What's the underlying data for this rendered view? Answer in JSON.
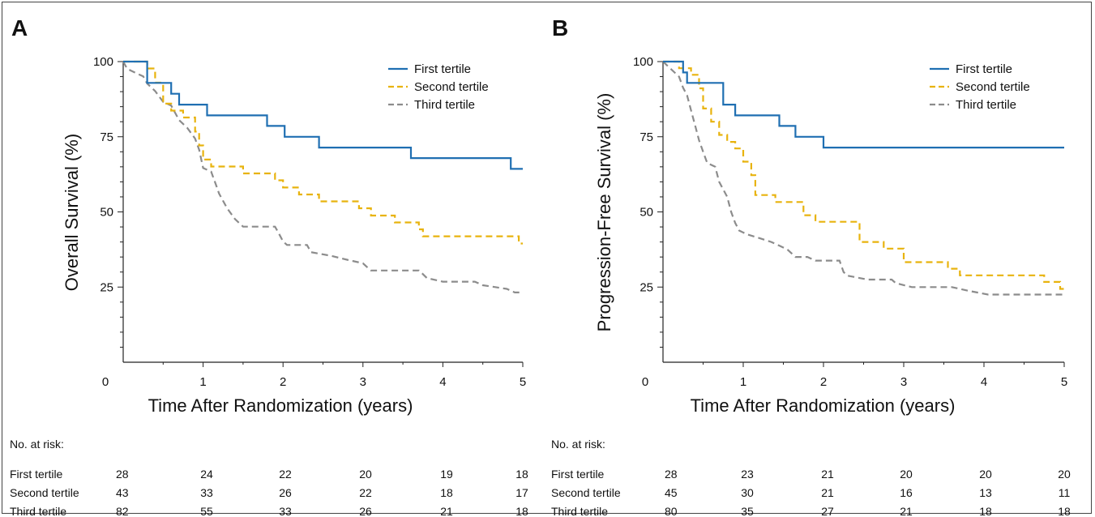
{
  "chart_data": [
    {
      "panel": "A",
      "type": "line",
      "step": true,
      "xlabel": "Time After Randomization (years)",
      "ylabel": "Overall Survival (%)",
      "xlim": [
        0,
        5
      ],
      "ylim": [
        0,
        100
      ],
      "xticks": [
        "0",
        "1",
        "2",
        "3",
        "4",
        "5"
      ],
      "yticks": [
        "25",
        "50",
        "75",
        "100"
      ],
      "legend_position": "top-right",
      "series": [
        {
          "name": "First tertile",
          "color": "#1f6fb2",
          "dash": "solid",
          "points": [
            [
              0,
              100
            ],
            [
              0.3,
              100
            ],
            [
              0.3,
              92.9
            ],
            [
              0.6,
              92.9
            ],
            [
              0.6,
              89.3
            ],
            [
              0.7,
              89.3
            ],
            [
              0.7,
              85.7
            ],
            [
              1.05,
              85.7
            ],
            [
              1.05,
              82.1
            ],
            [
              1.8,
              82.1
            ],
            [
              1.8,
              78.6
            ],
            [
              2.02,
              78.6
            ],
            [
              2.02,
              75
            ],
            [
              2.45,
              75
            ],
            [
              2.45,
              71.4
            ],
            [
              3.6,
              71.4
            ],
            [
              3.6,
              67.9
            ],
            [
              4.85,
              67.9
            ],
            [
              4.85,
              64.3
            ],
            [
              5,
              64.3
            ]
          ]
        },
        {
          "name": "Second tertile",
          "color": "#e8b30e",
          "dash": "dash",
          "points": [
            [
              0,
              100
            ],
            [
              0.3,
              100
            ],
            [
              0.3,
              97.7
            ],
            [
              0.4,
              97.7
            ],
            [
              0.4,
              93
            ],
            [
              0.5,
              93
            ],
            [
              0.5,
              86
            ],
            [
              0.6,
              86
            ],
            [
              0.6,
              83.7
            ],
            [
              0.75,
              83.7
            ],
            [
              0.75,
              81.4
            ],
            [
              0.9,
              81.4
            ],
            [
              0.9,
              76.7
            ],
            [
              0.95,
              76.7
            ],
            [
              0.95,
              72.1
            ],
            [
              1.0,
              72.1
            ],
            [
              1.0,
              67.4
            ],
            [
              1.1,
              67.4
            ],
            [
              1.1,
              65.1
            ],
            [
              1.5,
              65.1
            ],
            [
              1.5,
              62.8
            ],
            [
              1.9,
              62.8
            ],
            [
              1.9,
              60.5
            ],
            [
              2.0,
              60.5
            ],
            [
              2.0,
              58.1
            ],
            [
              2.2,
              58.1
            ],
            [
              2.2,
              55.8
            ],
            [
              2.45,
              55.8
            ],
            [
              2.45,
              53.5
            ],
            [
              2.95,
              53.5
            ],
            [
              2.95,
              51.2
            ],
            [
              3.1,
              51.2
            ],
            [
              3.1,
              48.8
            ],
            [
              3.4,
              48.8
            ],
            [
              3.4,
              46.5
            ],
            [
              3.7,
              46.5
            ],
            [
              3.7,
              44.2
            ],
            [
              3.75,
              44.2
            ],
            [
              3.75,
              41.9
            ],
            [
              4.95,
              41.9
            ],
            [
              4.95,
              39.5
            ],
            [
              5,
              39.5
            ]
          ]
        },
        {
          "name": "Third tertile",
          "color": "#8c8c8c",
          "dash": "dash",
          "points": [
            [
              0,
              100
            ],
            [
              0.05,
              97.6
            ],
            [
              0.15,
              96.3
            ],
            [
              0.25,
              95.1
            ],
            [
              0.3,
              92.7
            ],
            [
              0.4,
              90.2
            ],
            [
              0.5,
              86.6
            ],
            [
              0.6,
              85.4
            ],
            [
              0.7,
              80.5
            ],
            [
              0.8,
              78
            ],
            [
              0.9,
              74.4
            ],
            [
              0.95,
              70.7
            ],
            [
              1.0,
              64.6
            ],
            [
              1.1,
              63.4
            ],
            [
              1.15,
              59.8
            ],
            [
              1.2,
              56.1
            ],
            [
              1.3,
              51.2
            ],
            [
              1.4,
              47.6
            ],
            [
              1.5,
              45.1
            ],
            [
              1.9,
              45.1
            ],
            [
              1.95,
              42.7
            ],
            [
              2.0,
              40.2
            ],
            [
              2.05,
              39
            ],
            [
              2.3,
              39
            ],
            [
              2.35,
              36.6
            ],
            [
              2.6,
              35.4
            ],
            [
              2.8,
              34.1
            ],
            [
              3.0,
              32.9
            ],
            [
              3.05,
              31.7
            ],
            [
              3.1,
              30.5
            ],
            [
              3.7,
              30.5
            ],
            [
              3.75,
              29.3
            ],
            [
              3.8,
              28
            ],
            [
              4.0,
              26.8
            ],
            [
              4.4,
              26.8
            ],
            [
              4.5,
              25.6
            ],
            [
              4.8,
              24.4
            ],
            [
              4.9,
              23.2
            ],
            [
              5,
              23.2
            ]
          ]
        }
      ],
      "risk_table": {
        "title": "No. at risk:",
        "times": [
          0,
          1,
          2,
          3,
          4,
          5
        ],
        "rows": [
          {
            "label": "First tertile",
            "values": [
              "28",
              "24",
              "22",
              "20",
              "19",
              "18"
            ]
          },
          {
            "label": "Second tertile",
            "values": [
              "43",
              "33",
              "26",
              "22",
              "18",
              "17"
            ]
          },
          {
            "label": "Third tertile",
            "values": [
              "82",
              "55",
              "33",
              "26",
              "21",
              "18"
            ]
          }
        ]
      }
    },
    {
      "panel": "B",
      "type": "line",
      "step": true,
      "xlabel": "Time After Randomization (years)",
      "ylabel": "Progression-Free Survival (%)",
      "xlim": [
        0,
        5
      ],
      "ylim": [
        0,
        100
      ],
      "xticks": [
        "0",
        "1",
        "2",
        "3",
        "4",
        "5"
      ],
      "yticks": [
        "25",
        "50",
        "75",
        "100"
      ],
      "legend_position": "top-right",
      "series": [
        {
          "name": "First tertile",
          "color": "#1f6fb2",
          "dash": "solid",
          "points": [
            [
              0,
              100
            ],
            [
              0.25,
              100
            ],
            [
              0.25,
              96.4
            ],
            [
              0.3,
              96.4
            ],
            [
              0.3,
              92.9
            ],
            [
              0.75,
              92.9
            ],
            [
              0.75,
              85.7
            ],
            [
              0.9,
              85.7
            ],
            [
              0.9,
              82.1
            ],
            [
              1.45,
              82.1
            ],
            [
              1.45,
              78.6
            ],
            [
              1.65,
              78.6
            ],
            [
              1.65,
              75
            ],
            [
              2.0,
              75
            ],
            [
              2.0,
              71.4
            ],
            [
              5,
              71.4
            ]
          ]
        },
        {
          "name": "Second tertile",
          "color": "#e8b30e",
          "dash": "dash",
          "points": [
            [
              0,
              100
            ],
            [
              0.2,
              100
            ],
            [
              0.2,
              97.8
            ],
            [
              0.35,
              97.8
            ],
            [
              0.35,
              95.6
            ],
            [
              0.45,
              95.6
            ],
            [
              0.45,
              91.1
            ],
            [
              0.5,
              91.1
            ],
            [
              0.5,
              84.4
            ],
            [
              0.6,
              84.4
            ],
            [
              0.6,
              80
            ],
            [
              0.7,
              80
            ],
            [
              0.7,
              75.6
            ],
            [
              0.8,
              75.6
            ],
            [
              0.8,
              73.3
            ],
            [
              0.9,
              73.3
            ],
            [
              0.9,
              71.1
            ],
            [
              1.0,
              71.1
            ],
            [
              1.0,
              66.7
            ],
            [
              1.1,
              66.7
            ],
            [
              1.1,
              62.2
            ],
            [
              1.15,
              62.2
            ],
            [
              1.15,
              55.6
            ],
            [
              1.4,
              55.6
            ],
            [
              1.4,
              53.3
            ],
            [
              1.75,
              53.3
            ],
            [
              1.75,
              48.9
            ],
            [
              1.9,
              48.9
            ],
            [
              1.9,
              46.7
            ],
            [
              2.45,
              46.7
            ],
            [
              2.45,
              40
            ],
            [
              2.75,
              40
            ],
            [
              2.75,
              37.8
            ],
            [
              3.0,
              37.8
            ],
            [
              3.0,
              33.3
            ],
            [
              3.55,
              33.3
            ],
            [
              3.55,
              31.1
            ],
            [
              3.7,
              31.1
            ],
            [
              3.7,
              28.9
            ],
            [
              4.75,
              28.9
            ],
            [
              4.75,
              26.7
            ],
            [
              4.95,
              26.7
            ],
            [
              4.95,
              24.4
            ],
            [
              5,
              24.4
            ]
          ]
        },
        {
          "name": "Third tertile",
          "color": "#8c8c8c",
          "dash": "dash",
          "points": [
            [
              0,
              100
            ],
            [
              0.1,
              97.5
            ],
            [
              0.2,
              95
            ],
            [
              0.25,
              91.3
            ],
            [
              0.3,
              88.8
            ],
            [
              0.35,
              83.8
            ],
            [
              0.4,
              78.8
            ],
            [
              0.45,
              73.8
            ],
            [
              0.5,
              70
            ],
            [
              0.55,
              66.3
            ],
            [
              0.65,
              65
            ],
            [
              0.7,
              60
            ],
            [
              0.8,
              55
            ],
            [
              0.85,
              50
            ],
            [
              0.9,
              46.3
            ],
            [
              0.95,
              43.8
            ],
            [
              1.05,
              42.5
            ],
            [
              1.2,
              41.3
            ],
            [
              1.35,
              40
            ],
            [
              1.45,
              38.8
            ],
            [
              1.55,
              37.5
            ],
            [
              1.65,
              35
            ],
            [
              1.8,
              35
            ],
            [
              1.9,
              33.8
            ],
            [
              2.2,
              33.8
            ],
            [
              2.25,
              30
            ],
            [
              2.3,
              28.8
            ],
            [
              2.55,
              27.5
            ],
            [
              2.85,
              27.5
            ],
            [
              2.9,
              26.3
            ],
            [
              3.1,
              25
            ],
            [
              3.6,
              25
            ],
            [
              3.8,
              23.8
            ],
            [
              4.05,
              22.5
            ],
            [
              5,
              22.5
            ]
          ]
        }
      ],
      "risk_table": {
        "title": "No. at risk:",
        "times": [
          0,
          1,
          2,
          3,
          4,
          5
        ],
        "rows": [
          {
            "label": "First tertile",
            "values": [
              "28",
              "23",
              "21",
              "20",
              "20",
              "20"
            ]
          },
          {
            "label": "Second tertile",
            "values": [
              "45",
              "30",
              "21",
              "16",
              "13",
              "11"
            ]
          },
          {
            "label": "Third tertile",
            "values": [
              "80",
              "35",
              "27",
              "21",
              "18",
              "18"
            ]
          }
        ]
      }
    }
  ]
}
